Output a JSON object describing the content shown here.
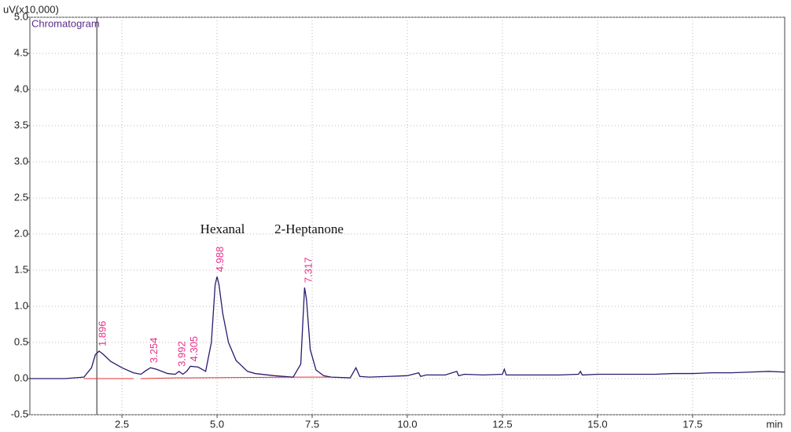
{
  "chart_data": {
    "type": "line",
    "y_label": "uV(x10,000)",
    "x_label": "min",
    "series": [
      {
        "name": "Chromatogram",
        "color": "#2a1a6e",
        "x": [
          0.08,
          0.5,
          1.0,
          1.5,
          1.7,
          1.8,
          1.9,
          2.0,
          2.2,
          2.5,
          2.8,
          3.0,
          3.1,
          3.25,
          3.4,
          3.7,
          3.9,
          4.0,
          4.1,
          4.2,
          4.3,
          4.5,
          4.7,
          4.85,
          4.95,
          5.0,
          5.05,
          5.15,
          5.3,
          5.5,
          5.8,
          6.0,
          6.5,
          7.0,
          7.2,
          7.3,
          7.35,
          7.45,
          7.6,
          7.8,
          8.0,
          8.5,
          8.65,
          8.75,
          9.0,
          9.5,
          10.0,
          10.3,
          10.35,
          10.5,
          11.0,
          11.3,
          11.35,
          11.5,
          12.0,
          12.5,
          12.55,
          12.6,
          13.0,
          13.5,
          14.0,
          14.5,
          14.55,
          14.6,
          15.0,
          15.5,
          16.0,
          16.5,
          17.0,
          17.5,
          18.0,
          18.5,
          19.0,
          19.5,
          19.92
        ],
        "values": [
          0.0,
          0.0,
          0.0,
          0.02,
          0.15,
          0.33,
          0.38,
          0.34,
          0.24,
          0.15,
          0.08,
          0.06,
          0.1,
          0.15,
          0.13,
          0.07,
          0.06,
          0.1,
          0.06,
          0.1,
          0.17,
          0.16,
          0.1,
          0.5,
          1.3,
          1.41,
          1.3,
          0.9,
          0.5,
          0.25,
          0.1,
          0.07,
          0.04,
          0.02,
          0.2,
          1.26,
          1.1,
          0.4,
          0.12,
          0.04,
          0.02,
          0.01,
          0.15,
          0.03,
          0.02,
          0.03,
          0.04,
          0.08,
          0.03,
          0.05,
          0.05,
          0.1,
          0.04,
          0.06,
          0.05,
          0.06,
          0.13,
          0.05,
          0.05,
          0.05,
          0.05,
          0.06,
          0.1,
          0.05,
          0.06,
          0.06,
          0.06,
          0.06,
          0.07,
          0.07,
          0.08,
          0.08,
          0.09,
          0.1,
          0.09
        ]
      }
    ],
    "peaks": [
      {
        "label": "1.896",
        "x": 1.896,
        "y": 0.38
      },
      {
        "label": "3.254",
        "x": 3.254,
        "y": 0.15
      },
      {
        "label": "3.992",
        "x": 3.992,
        "y": 0.1
      },
      {
        "label": "4.305",
        "x": 4.305,
        "y": 0.17
      },
      {
        "label": "4.988",
        "x": 4.988,
        "y": 1.41
      },
      {
        "label": "7.317",
        "x": 7.317,
        "y": 1.26
      }
    ],
    "peak_color": "#e8308c",
    "annotations": [
      "Hexanal",
      "2-Heptanone"
    ],
    "cursor_x": 1.84,
    "baselines": [
      {
        "x": [
          1.5,
          2.8
        ],
        "y": [
          0.0,
          0.0
        ]
      },
      {
        "x": [
          3.0,
          3.9
        ],
        "y": [
          0.0,
          0.01
        ]
      },
      {
        "x": [
          3.9,
          4.15
        ],
        "y": [
          0.01,
          0.01
        ]
      },
      {
        "x": [
          4.15,
          7.0
        ],
        "y": [
          0.01,
          0.02
        ]
      },
      {
        "x": [
          7.0,
          8.0
        ],
        "y": [
          0.02,
          0.02
        ]
      }
    ],
    "baseline_color": "#e03030",
    "xlim": [
      0.08,
      19.92
    ],
    "ylim": [
      -0.5,
      5.0
    ],
    "xticks": [
      {
        "value": 2.5,
        "label": "2.5"
      },
      {
        "value": 5,
        "label": "5.0"
      },
      {
        "value": 7.5,
        "label": "7.5"
      },
      {
        "value": 10,
        "label": "10.0"
      },
      {
        "value": 12.5,
        "label": "12.5"
      },
      {
        "value": 15,
        "label": "15.0"
      },
      {
        "value": 17.5,
        "label": "17.5"
      }
    ],
    "yticks": [
      {
        "value": -0.5,
        "label": "-0.5"
      },
      {
        "value": 0,
        "label": "0.0"
      },
      {
        "value": 0.5,
        "label": "0.5"
      },
      {
        "value": 1,
        "label": "1.0"
      },
      {
        "value": 1.5,
        "label": "1.5"
      },
      {
        "value": 2,
        "label": "2.0"
      },
      {
        "value": 2.5,
        "label": "2.5"
      },
      {
        "value": 3,
        "label": "3.0"
      },
      {
        "value": 3.5,
        "label": "3.5"
      },
      {
        "value": 4,
        "label": "4.0"
      },
      {
        "value": 4.5,
        "label": "4.5"
      },
      {
        "value": 5,
        "label": "5.0"
      }
    ],
    "grid": true
  }
}
